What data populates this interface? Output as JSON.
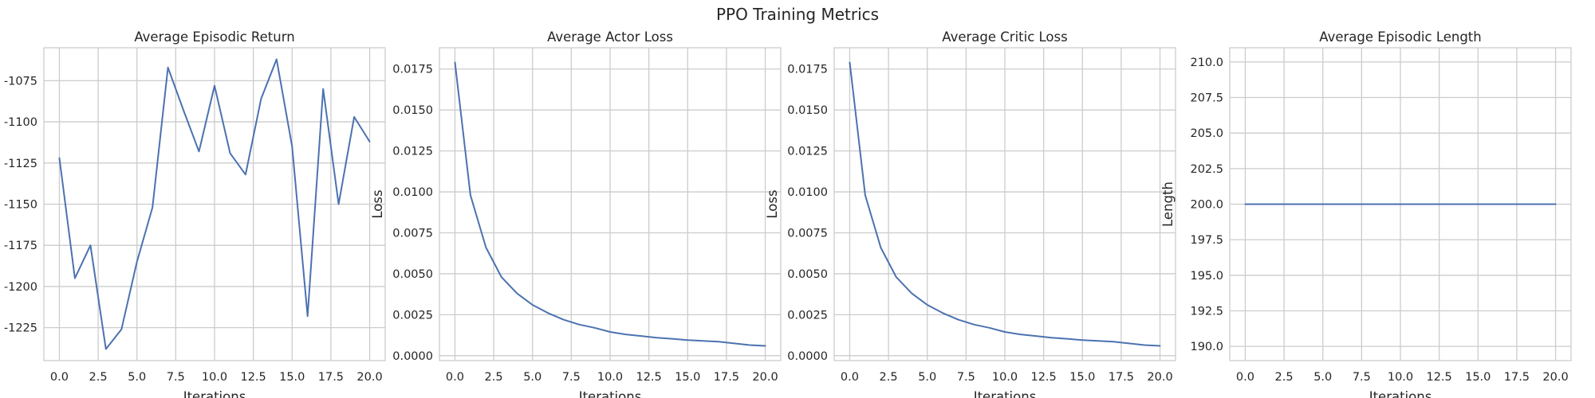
{
  "figure": {
    "title": "PPO Training Metrics"
  },
  "chart_data": [
    {
      "type": "line",
      "title": "Average Episodic Return",
      "xlabel": "Iterations",
      "ylabel": "",
      "x": [
        0,
        1,
        2,
        3,
        4,
        5,
        6,
        7,
        8,
        9,
        10,
        11,
        12,
        13,
        14,
        15,
        16,
        17,
        18,
        19,
        20
      ],
      "y": [
        -1122,
        -1195,
        -1175,
        -1238,
        -1226,
        -1185,
        -1152,
        -1067,
        -1093,
        -1118,
        -1078,
        -1119,
        -1132,
        -1086,
        -1062,
        -1115,
        -1218,
        -1080,
        -1150,
        -1097,
        -1112
      ],
      "xlim": [
        -1,
        21
      ],
      "ylim": [
        -1245,
        -1055
      ],
      "xticks": [
        0,
        2.5,
        5,
        7.5,
        10,
        12.5,
        15,
        17.5,
        20
      ],
      "xtick_labels": [
        "0.0",
        "2.5",
        "5.0",
        "7.5",
        "10.0",
        "12.5",
        "15.0",
        "17.5",
        "20.0"
      ],
      "yticks": [
        -1225,
        -1200,
        -1175,
        -1150,
        -1125,
        -1100,
        -1075
      ],
      "ytick_labels": [
        "-1225",
        "-1200",
        "-1175",
        "-1150",
        "-1125",
        "-1100",
        "-1075"
      ],
      "grid": true
    },
    {
      "type": "line",
      "title": "Average Actor Loss",
      "xlabel": "Iterations",
      "ylabel": "Loss",
      "x": [
        0,
        1,
        2,
        3,
        4,
        5,
        6,
        7,
        8,
        9,
        10,
        11,
        12,
        13,
        14,
        15,
        16,
        17,
        18,
        19,
        20
      ],
      "y": [
        0.0179,
        0.0098,
        0.0066,
        0.0048,
        0.0038,
        0.0031,
        0.0026,
        0.0022,
        0.0019,
        0.0017,
        0.00145,
        0.0013,
        0.0012,
        0.0011,
        0.00103,
        0.00095,
        0.0009,
        0.00085,
        0.00075,
        0.00065,
        0.0006
      ],
      "xlim": [
        -1,
        21
      ],
      "ylim": [
        -0.0003,
        0.0188
      ],
      "xticks": [
        0,
        2.5,
        5,
        7.5,
        10,
        12.5,
        15,
        17.5,
        20
      ],
      "xtick_labels": [
        "0.0",
        "2.5",
        "5.0",
        "7.5",
        "10.0",
        "12.5",
        "15.0",
        "17.5",
        "20.0"
      ],
      "yticks": [
        0,
        0.0025,
        0.005,
        0.0075,
        0.01,
        0.0125,
        0.015,
        0.0175
      ],
      "ytick_labels": [
        "0.0000",
        "0.0025",
        "0.0050",
        "0.0075",
        "0.0100",
        "0.0125",
        "0.0150",
        "0.0175"
      ],
      "grid": true
    },
    {
      "type": "line",
      "title": "Average Critic Loss",
      "xlabel": "Iterations",
      "ylabel": "Loss",
      "x": [
        0,
        1,
        2,
        3,
        4,
        5,
        6,
        7,
        8,
        9,
        10,
        11,
        12,
        13,
        14,
        15,
        16,
        17,
        18,
        19,
        20
      ],
      "y": [
        0.0179,
        0.0098,
        0.0066,
        0.0048,
        0.0038,
        0.0031,
        0.0026,
        0.0022,
        0.0019,
        0.0017,
        0.00145,
        0.0013,
        0.0012,
        0.0011,
        0.00103,
        0.00095,
        0.0009,
        0.00085,
        0.00075,
        0.00065,
        0.0006
      ],
      "xlim": [
        -1,
        21
      ],
      "ylim": [
        -0.0003,
        0.0188
      ],
      "xticks": [
        0,
        2.5,
        5,
        7.5,
        10,
        12.5,
        15,
        17.5,
        20
      ],
      "xtick_labels": [
        "0.0",
        "2.5",
        "5.0",
        "7.5",
        "10.0",
        "12.5",
        "15.0",
        "17.5",
        "20.0"
      ],
      "yticks": [
        0,
        0.0025,
        0.005,
        0.0075,
        0.01,
        0.0125,
        0.015,
        0.0175
      ],
      "ytick_labels": [
        "0.0000",
        "0.0025",
        "0.0050",
        "0.0075",
        "0.0100",
        "0.0125",
        "0.0150",
        "0.0175"
      ],
      "grid": true
    },
    {
      "type": "line",
      "title": "Average Episodic Length",
      "xlabel": "Iterations",
      "ylabel": "Length",
      "x": [
        0,
        1,
        2,
        3,
        4,
        5,
        6,
        7,
        8,
        9,
        10,
        11,
        12,
        13,
        14,
        15,
        16,
        17,
        18,
        19,
        20
      ],
      "y": [
        200,
        200,
        200,
        200,
        200,
        200,
        200,
        200,
        200,
        200,
        200,
        200,
        200,
        200,
        200,
        200,
        200,
        200,
        200,
        200,
        200
      ],
      "xlim": [
        -1,
        21
      ],
      "ylim": [
        189,
        211
      ],
      "xticks": [
        0,
        2.5,
        5,
        7.5,
        10,
        12.5,
        15,
        17.5,
        20
      ],
      "xtick_labels": [
        "0.0",
        "2.5",
        "5.0",
        "7.5",
        "10.0",
        "12.5",
        "15.0",
        "17.5",
        "20.0"
      ],
      "yticks": [
        190,
        192.5,
        195,
        197.5,
        200,
        202.5,
        205,
        207.5,
        210
      ],
      "ytick_labels": [
        "190.0",
        "192.5",
        "195.0",
        "197.5",
        "200.0",
        "202.5",
        "205.0",
        "207.5",
        "210.0"
      ],
      "grid": true
    }
  ]
}
